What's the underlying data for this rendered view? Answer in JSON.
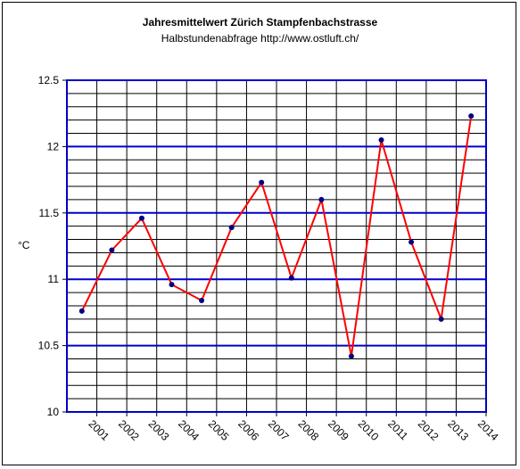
{
  "chart_data": {
    "type": "line",
    "title": "Jahresmittelwert Zürich Stampfenbachstrasse",
    "subtitle": "Halbstundenabfrage http://www.ostluft.ch/",
    "ylabel": "°C",
    "xlabel": "",
    "ylim": [
      10,
      12.5
    ],
    "y_ticks": [
      "10",
      "10.5",
      "11",
      "11.5",
      "12",
      "12.5"
    ],
    "x_ticks": [
      "2001",
      "2002",
      "2003",
      "2004",
      "2005",
      "2006",
      "2007",
      "2008",
      "2009",
      "2010",
      "2011",
      "2012",
      "2013",
      "2014"
    ],
    "grid": true,
    "legend": "none",
    "series": [
      {
        "x": [
          2000.5,
          2001.5,
          2002.5,
          2003.5,
          2004.5,
          2005.5,
          2006.5,
          2007.5,
          2008.5,
          2009.5,
          2010.5,
          2011.5,
          2012.5,
          2013.5
        ],
        "values": [
          10.76,
          11.22,
          11.46,
          10.96,
          10.84,
          11.39,
          11.73,
          11.01,
          11.6,
          10.42,
          12.05,
          11.28,
          10.7,
          12.23
        ]
      }
    ],
    "colors": {
      "line": "#ff0000",
      "marker": "#000080",
      "major_grid": "#0000cc",
      "minor_grid": "#000000"
    }
  }
}
